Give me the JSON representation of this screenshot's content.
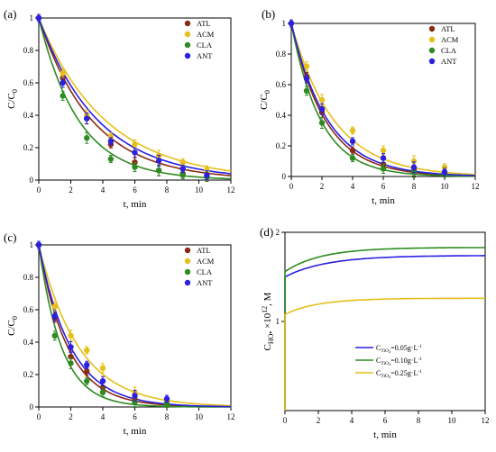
{
  "figure": {
    "series_names": [
      "ATL",
      "ACM",
      "CLA",
      "ANT"
    ],
    "series_colors": {
      "ATL": "#8b2a12",
      "ACM": "#e6bf1a",
      "CLA": "#2e8b22",
      "ANT": "#2b1fe0"
    }
  },
  "chart_data": [
    {
      "panel": "(a)",
      "type": "scatter",
      "xlabel": "t, min",
      "ylabel": "C/C",
      "ylabel_sub": "0",
      "xlim": [
        0,
        12
      ],
      "ylim": [
        0,
        1.0
      ],
      "xticks": [
        0,
        2,
        4,
        6,
        8,
        10,
        12
      ],
      "yticks": [
        0.0,
        0.2,
        0.4,
        0.6,
        0.8,
        1.0
      ],
      "legend_position": "top-right",
      "x": [
        0,
        1.5,
        3,
        4.5,
        6,
        7.5,
        9,
        10.5
      ],
      "series": [
        {
          "name": "ATL",
          "color": "#8b2a12",
          "values": [
            1.0,
            0.63,
            0.38,
            0.22,
            0.11,
            0.06,
            0.04,
            0.02
          ],
          "fit_k": 0.3
        },
        {
          "name": "ACM",
          "color": "#e6bf1a",
          "values": [
            1.0,
            0.66,
            0.4,
            0.27,
            0.22,
            0.15,
            0.11,
            0.06
          ],
          "fit_k": 0.24
        },
        {
          "name": "CLA",
          "color": "#2e8b22",
          "values": [
            1.0,
            0.52,
            0.26,
            0.13,
            0.08,
            0.06,
            0.03,
            0.02
          ],
          "fit_k": 0.4
        },
        {
          "name": "ANT",
          "color": "#2b1fe0",
          "values": [
            1.0,
            0.6,
            0.38,
            0.24,
            0.17,
            0.12,
            0.07,
            0.03
          ],
          "fit_k": 0.27
        }
      ]
    },
    {
      "panel": "(b)",
      "type": "scatter",
      "xlabel": "t, min",
      "ylabel": "C/C",
      "ylabel_sub": "0",
      "xlim": [
        0,
        12
      ],
      "ylim": [
        0,
        1.0
      ],
      "xticks": [
        0,
        2,
        4,
        6,
        8,
        10,
        12
      ],
      "yticks": [
        0.0,
        0.2,
        0.4,
        0.6,
        0.8,
        1.0
      ],
      "legend_position": "top-right",
      "x": [
        0,
        1,
        2,
        4,
        6,
        8,
        10
      ],
      "series": [
        {
          "name": "ATL",
          "color": "#8b2a12",
          "values": [
            1.0,
            0.65,
            0.42,
            0.17,
            0.08,
            0.04,
            0.02
          ],
          "fit_k": 0.45
        },
        {
          "name": "ACM",
          "color": "#e6bf1a",
          "values": [
            1.0,
            0.72,
            0.5,
            0.3,
            0.17,
            0.1,
            0.06
          ],
          "fit_k": 0.36
        },
        {
          "name": "CLA",
          "color": "#2e8b22",
          "values": [
            1.0,
            0.56,
            0.35,
            0.12,
            0.05,
            0.03,
            0.02
          ],
          "fit_k": 0.52
        },
        {
          "name": "ANT",
          "color": "#2b1fe0",
          "values": [
            1.0,
            0.64,
            0.44,
            0.23,
            0.12,
            0.06,
            0.03
          ],
          "fit_k": 0.42
        }
      ]
    },
    {
      "panel": "(c)",
      "type": "scatter",
      "xlabel": "t, min",
      "ylabel": "C/C",
      "ylabel_sub": "0",
      "xlim": [
        0,
        12
      ],
      "ylim": [
        0,
        1.0
      ],
      "xticks": [
        0,
        2,
        4,
        6,
        8,
        10,
        12
      ],
      "yticks": [
        0.0,
        0.2,
        0.4,
        0.6,
        0.8,
        1.0
      ],
      "legend_position": "top-right",
      "x": [
        0,
        1,
        2,
        3,
        4,
        6,
        8
      ],
      "series": [
        {
          "name": "ATL",
          "color": "#8b2a12",
          "values": [
            1.0,
            0.55,
            0.31,
            0.22,
            0.12,
            0.05,
            0.03
          ],
          "fit_k": 0.55
        },
        {
          "name": "ACM",
          "color": "#e6bf1a",
          "values": [
            1.0,
            0.62,
            0.44,
            0.35,
            0.24,
            0.09,
            0.04
          ],
          "fit_k": 0.4
        },
        {
          "name": "CLA",
          "color": "#2e8b22",
          "values": [
            1.0,
            0.44,
            0.27,
            0.16,
            0.09,
            0.03,
            0.02
          ],
          "fit_k": 0.7
        },
        {
          "name": "ANT",
          "color": "#2b1fe0",
          "values": [
            1.0,
            0.56,
            0.37,
            0.26,
            0.16,
            0.07,
            0.05
          ],
          "fit_k": 0.5
        }
      ]
    },
    {
      "panel": "(d)",
      "type": "line",
      "xlabel": "t, min",
      "ylabel": "C",
      "ylabel_sub": "HO•",
      "ylabel_rest": " ×10",
      "ylabel_sup": "12",
      "ylabel_unit": ", M",
      "xlim": [
        0,
        12
      ],
      "xticks": [
        0,
        2,
        4,
        6,
        8,
        10,
        12
      ],
      "yticks": [
        1,
        2
      ],
      "ylim": [
        0,
        2.0
      ],
      "legend_position": "bottom-right",
      "series": [
        {
          "name": "CTiO2=0.05g·L-1",
          "label_main": "C",
          "label_sub": "TiO",
          "label_sub2": "2",
          "label_value": "=0.05g·L",
          "label_sup": "-1",
          "color": "#2b1fe0",
          "y0": 1.5,
          "yinf": 1.74,
          "tau": 2.5
        },
        {
          "name": "CTiO2=0.10g·L-1",
          "label_main": "C",
          "label_sub": "TiO",
          "label_sub2": "2",
          "label_value": "=0.10g·L",
          "label_sup": "-1",
          "color": "#2e8b22",
          "y0": 1.56,
          "yinf": 1.83,
          "tau": 2.2
        },
        {
          "name": "CTiO2=0.25g·L-1",
          "label_main": "C",
          "label_sub": "TiO",
          "label_sub2": "2",
          "label_value": "=0.25g·L",
          "label_sup": "-1",
          "color": "#e6bf1a",
          "y0": 1.08,
          "yinf": 1.26,
          "tau": 2.0
        }
      ]
    }
  ]
}
